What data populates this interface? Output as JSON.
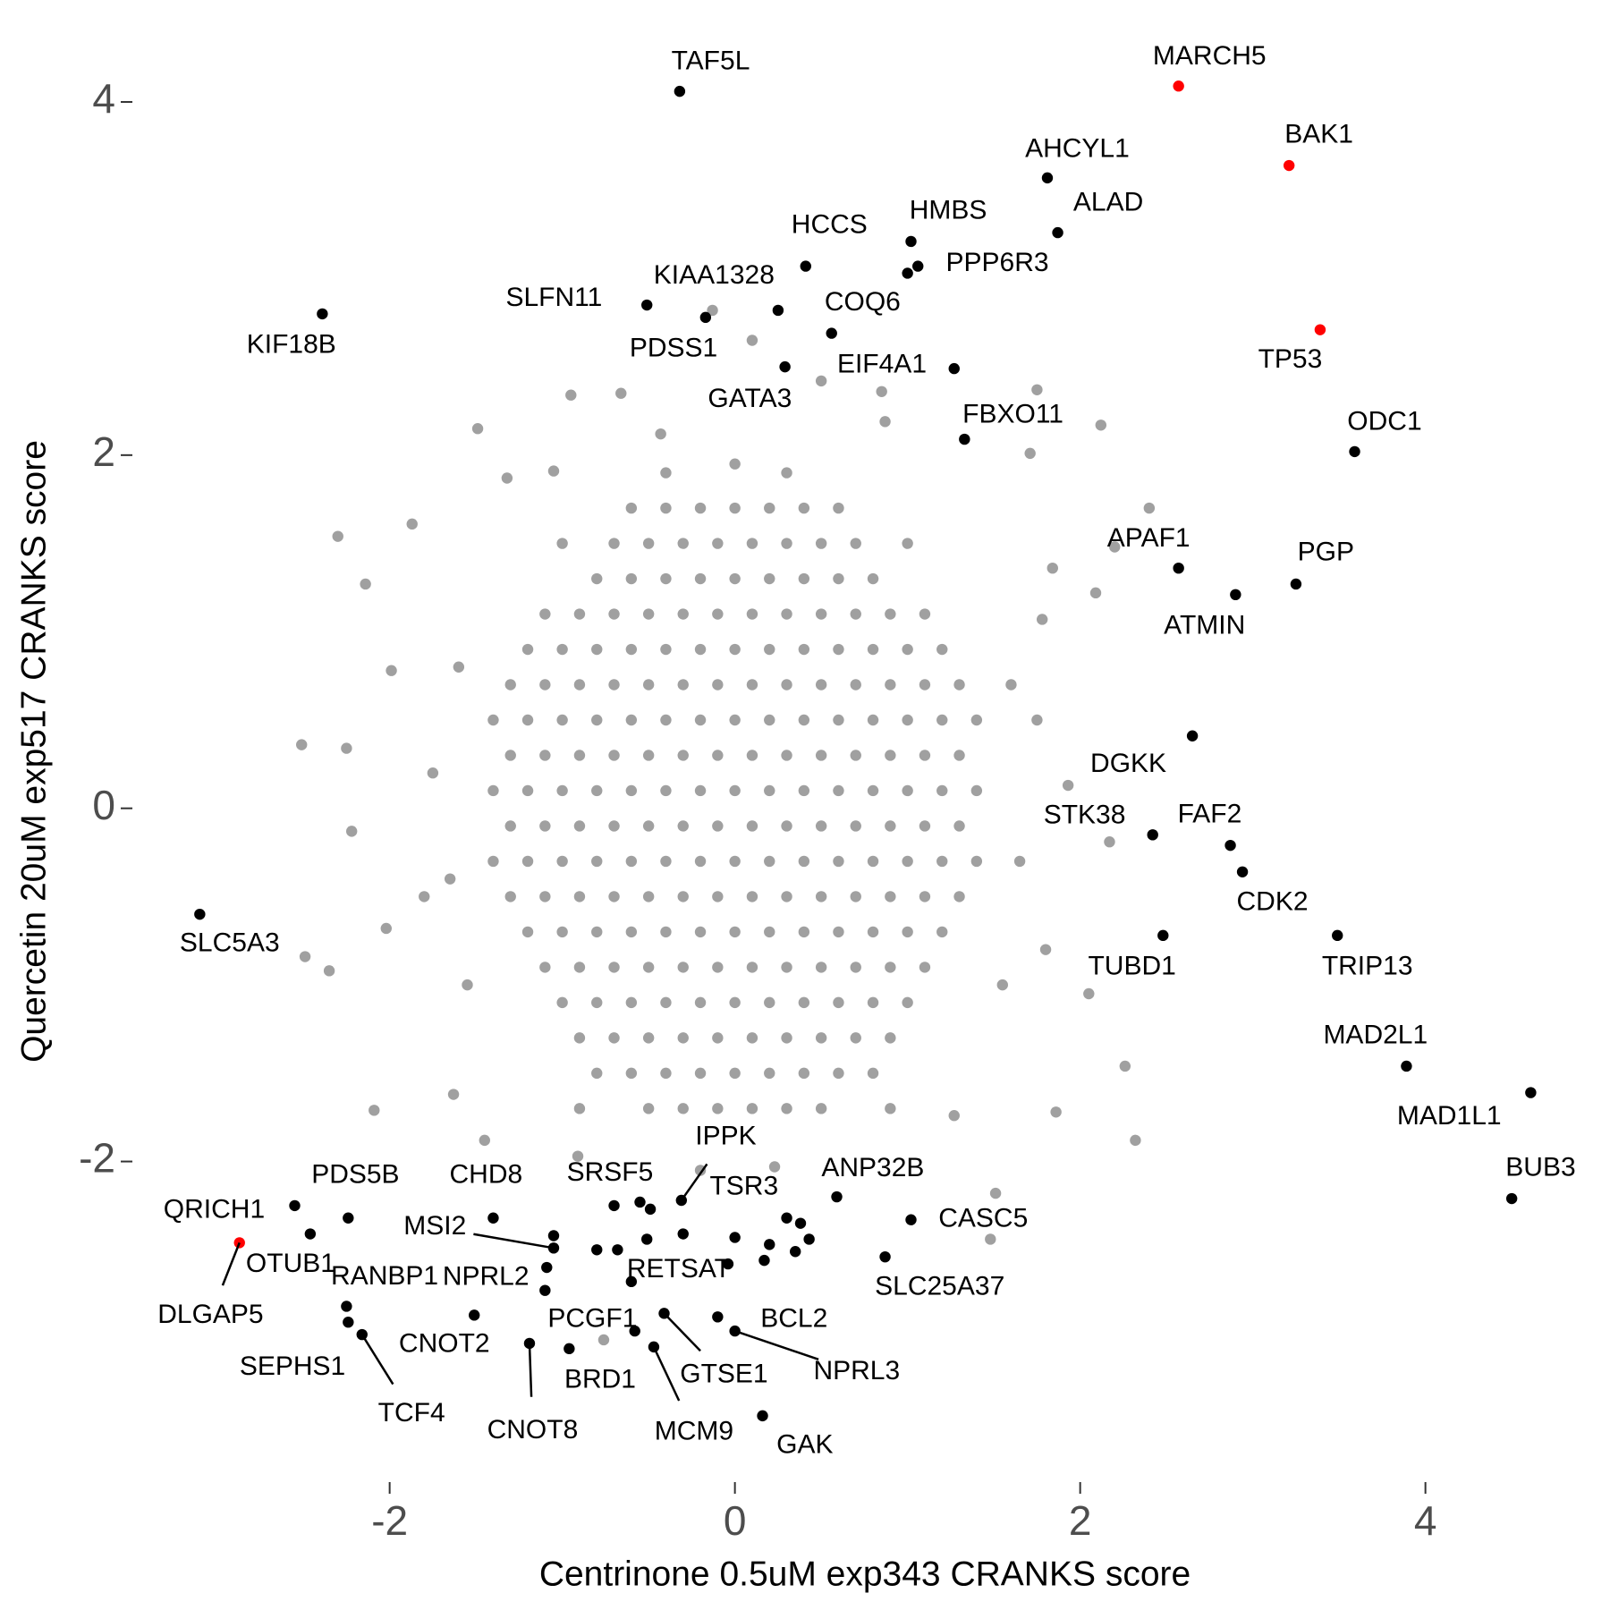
{
  "chart_data": {
    "type": "scatter",
    "x_label": "Centrinone 0.5uM exp343 CRANKS score",
    "y_label": "Quercetin 20uM exp517 CRANKS score",
    "xlim": [
      -3.48,
      4.95
    ],
    "ylim": [
      -3.78,
      4.4
    ],
    "xticks": [
      -2,
      0,
      2,
      4
    ],
    "yticks": [
      -2,
      0,
      2,
      4
    ],
    "grid": false,
    "series": [
      {
        "color": "#a0a0a0",
        "x": [
          -0.6,
          -0.4,
          -0.2,
          0,
          0.2,
          0.4,
          0.6,
          -0.7,
          -0.5,
          -0.3,
          -0.1,
          0.1,
          0.3,
          0.5,
          0.7,
          -0.8,
          -0.6,
          -0.4,
          -0.2,
          0,
          0.2,
          0.4,
          0.6,
          0.8,
          -1.1,
          -0.9,
          -0.7,
          -0.5,
          -0.3,
          -0.1,
          0.1,
          0.3,
          0.5,
          0.7,
          0.9,
          1.1,
          -1.2,
          -1,
          -0.8,
          -0.6,
          -0.4,
          -0.2,
          0,
          0.2,
          0.4,
          0.6,
          0.8,
          1,
          1.2,
          -1.3,
          -1.1,
          -0.9,
          -0.7,
          -0.5,
          -0.3,
          -0.1,
          0.1,
          0.3,
          0.5,
          0.7,
          0.9,
          1.1,
          1.3,
          -1.4,
          -1.2,
          -1,
          -0.8,
          -0.6,
          -0.4,
          -0.2,
          0,
          0.2,
          0.4,
          0.6,
          0.8,
          1,
          1.2,
          1.4,
          -1.3,
          -1.1,
          -0.9,
          -0.7,
          -0.5,
          -0.3,
          -0.1,
          0.1,
          0.3,
          0.5,
          0.7,
          0.9,
          1.1,
          1.3,
          -1.4,
          -1.2,
          -1,
          -0.8,
          -0.6,
          -0.4,
          -0.2,
          0,
          0.2,
          0.4,
          0.6,
          0.8,
          1,
          1.2,
          1.4,
          -1.3,
          -1.1,
          -0.9,
          -0.7,
          -0.5,
          -0.3,
          -0.1,
          0.1,
          0.3,
          0.5,
          0.7,
          0.9,
          1.1,
          1.3,
          -1.4,
          -1.2,
          -1,
          -0.8,
          -0.6,
          -0.4,
          -0.2,
          0,
          0.2,
          0.4,
          0.6,
          0.8,
          1,
          1.2,
          1.4,
          -1.3,
          -1.1,
          -0.9,
          -0.7,
          -0.5,
          -0.3,
          -0.1,
          0.1,
          0.3,
          0.5,
          0.7,
          0.9,
          1.1,
          1.3,
          -1.2,
          -1,
          -0.8,
          -0.6,
          -0.4,
          -0.2,
          0,
          0.2,
          0.4,
          0.6,
          0.8,
          1,
          1.2,
          -1.1,
          -0.9,
          -0.7,
          -0.5,
          -0.3,
          -0.1,
          0.1,
          0.3,
          0.5,
          0.7,
          0.9,
          1.1,
          -1,
          -0.8,
          -0.6,
          -0.4,
          -0.2,
          0,
          0.2,
          0.4,
          0.6,
          0.8,
          1,
          -0.9,
          -0.7,
          -0.5,
          -0.3,
          -0.1,
          0.1,
          0.3,
          0.5,
          0.7,
          0.9,
          -0.8,
          -0.6,
          -0.4,
          -0.2,
          0,
          0.2,
          0.4,
          0.6,
          0.8,
          -0.5,
          -0.3,
          -0.1,
          0.1,
          0.3,
          0.5,
          -2.51,
          -2.3,
          -1.87,
          -2.14,
          -2.49,
          -2.09,
          2.32,
          2.26,
          1.86,
          2.05,
          2.4,
          2.12,
          1.75,
          1.71,
          -0.66,
          -0.95,
          -1.49,
          -1.32,
          -1.05,
          -0.13,
          0.1,
          0.5,
          0.85,
          0.87,
          1.84,
          2.2,
          2.09,
          2.17,
          1.93,
          -2.22,
          -2.25,
          -1.99,
          -2.02,
          -2.35,
          -1.63,
          -1.45,
          -0.76,
          1.51,
          1.27,
          -0.91,
          0.23,
          -0.43,
          1.78,
          1.48,
          -1.6,
          -1.65,
          -1.55,
          1.6,
          1.65,
          1.55,
          -0.9,
          0.9,
          -1.0,
          1.0,
          0.0,
          -0.2,
          0.3,
          -0.4,
          1.8,
          -1.8,
          1.75,
          -1.75
        ],
        "y": [
          1.7,
          1.7,
          1.7,
          1.7,
          1.7,
          1.7,
          1.7,
          1.5,
          1.5,
          1.5,
          1.5,
          1.5,
          1.5,
          1.5,
          1.5,
          1.3,
          1.3,
          1.3,
          1.3,
          1.3,
          1.3,
          1.3,
          1.3,
          1.3,
          1.1,
          1.1,
          1.1,
          1.1,
          1.1,
          1.1,
          1.1,
          1.1,
          1.1,
          1.1,
          1.1,
          1.1,
          0.9,
          0.9,
          0.9,
          0.9,
          0.9,
          0.9,
          0.9,
          0.9,
          0.9,
          0.9,
          0.9,
          0.9,
          0.9,
          0.7,
          0.7,
          0.7,
          0.7,
          0.7,
          0.7,
          0.7,
          0.7,
          0.7,
          0.7,
          0.7,
          0.7,
          0.7,
          0.7,
          0.5,
          0.5,
          0.5,
          0.5,
          0.5,
          0.5,
          0.5,
          0.5,
          0.5,
          0.5,
          0.5,
          0.5,
          0.5,
          0.5,
          0.5,
          0.3,
          0.3,
          0.3,
          0.3,
          0.3,
          0.3,
          0.3,
          0.3,
          0.3,
          0.3,
          0.3,
          0.3,
          0.3,
          0.3,
          0.1,
          0.1,
          0.1,
          0.1,
          0.1,
          0.1,
          0.1,
          0.1,
          0.1,
          0.1,
          0.1,
          0.1,
          0.1,
          0.1,
          0.1,
          -0.1,
          -0.1,
          -0.1,
          -0.1,
          -0.1,
          -0.1,
          -0.1,
          -0.1,
          -0.1,
          -0.1,
          -0.1,
          -0.1,
          -0.1,
          -0.1,
          -0.3,
          -0.3,
          -0.3,
          -0.3,
          -0.3,
          -0.3,
          -0.3,
          -0.3,
          -0.3,
          -0.3,
          -0.3,
          -0.3,
          -0.3,
          -0.3,
          -0.3,
          -0.5,
          -0.5,
          -0.5,
          -0.5,
          -0.5,
          -0.5,
          -0.5,
          -0.5,
          -0.5,
          -0.5,
          -0.5,
          -0.5,
          -0.5,
          -0.5,
          -0.7,
          -0.7,
          -0.7,
          -0.7,
          -0.7,
          -0.7,
          -0.7,
          -0.7,
          -0.7,
          -0.7,
          -0.7,
          -0.7,
          -0.7,
          -0.9,
          -0.9,
          -0.9,
          -0.9,
          -0.9,
          -0.9,
          -0.9,
          -0.9,
          -0.9,
          -0.9,
          -0.9,
          -0.9,
          -1.1,
          -1.1,
          -1.1,
          -1.1,
          -1.1,
          -1.1,
          -1.1,
          -1.1,
          -1.1,
          -1.1,
          -1.1,
          -1.3,
          -1.3,
          -1.3,
          -1.3,
          -1.3,
          -1.3,
          -1.3,
          -1.3,
          -1.3,
          -1.3,
          -1.5,
          -1.5,
          -1.5,
          -1.5,
          -1.5,
          -1.5,
          -1.5,
          -1.5,
          -1.5,
          -1.7,
          -1.7,
          -1.7,
          -1.7,
          -1.7,
          -1.7,
          0.36,
          1.54,
          1.61,
          1.27,
          -0.84,
          -1.71,
          -1.88,
          -1.46,
          -1.72,
          -1.05,
          1.7,
          2.17,
          2.37,
          2.01,
          2.35,
          2.34,
          2.15,
          1.87,
          1.91,
          2.82,
          2.65,
          2.42,
          2.36,
          2.19,
          1.36,
          1.48,
          1.22,
          -0.19,
          0.13,
          -0.13,
          0.34,
          0.78,
          -0.68,
          -0.92,
          -1.62,
          -1.88,
          -3.01,
          -2.18,
          -1.74,
          -1.97,
          -2.03,
          2.12,
          1.07,
          -2.44,
          0.8,
          -0.4,
          -1.0,
          0.7,
          -0.3,
          -1.0,
          -1.7,
          -1.7,
          1.5,
          1.5,
          1.95,
          -2.05,
          1.9,
          1.9,
          -0.8,
          -0.5,
          0.5,
          0.2
        ]
      },
      {
        "color": "#000000",
        "x": [
          1.0,
          -1.05,
          -0.8,
          -0.68,
          -0.51,
          -0.49,
          -0.55,
          0.0,
          -0.04,
          0.17,
          0.2,
          0.3,
          0.38,
          0.43,
          0.35,
          -1.1
        ],
        "y": [
          3.03,
          -2.42,
          -2.5,
          -2.5,
          -2.44,
          -2.27,
          -2.23,
          -2.43,
          -2.58,
          -2.56,
          -2.47,
          -2.32,
          -2.35,
          -2.44,
          -2.51,
          -2.73
        ]
      },
      {
        "color": "#000000",
        "labels": [
          "TAF5L",
          "AHCYL1",
          "ALAD",
          "HMBS",
          "PPP6R3",
          "HCCS",
          "KIAA1328",
          "SLFN11",
          "PDSS1",
          "KIF18B",
          "COQ6",
          "GATA3",
          "EIF4A1",
          "FBXO11",
          "ODC1",
          "APAF1",
          "PGP",
          "ATMIN",
          "DGKK",
          "STK38",
          "FAF2",
          "CDK2",
          "TUBD1",
          "TRIP13",
          "SLC5A3",
          "MAD2L1",
          "MAD1L1",
          "BUB3",
          "QRICH1",
          "PDS5B",
          "OTUB1",
          "CHD8",
          "MSI2",
          "RANBP1",
          "SEPHS1",
          "TCF4",
          "NPRL2",
          "CNOT2",
          "CNOT8",
          "BRD1",
          "PCGF1",
          "SRSF5",
          "IPPK",
          "TSR3",
          "RETSAT",
          "GTSE1",
          "MCM9",
          "ANP32B",
          "CASC5",
          "SLC25A37",
          "BCL2",
          "NPRL3",
          "GAK"
        ],
        "x": [
          -0.32,
          1.81,
          1.87,
          1.02,
          1.06,
          0.41,
          0.25,
          -0.51,
          -0.17,
          -2.39,
          0.56,
          0.29,
          1.27,
          1.33,
          3.59,
          2.57,
          3.25,
          2.9,
          2.65,
          2.42,
          2.87,
          2.94,
          2.48,
          3.49,
          -3.1,
          3.89,
          4.61,
          4.5,
          -2.55,
          -2.24,
          -2.46,
          -1.4,
          -1.05,
          -2.25,
          -2.24,
          -2.16,
          -1.09,
          -1.51,
          -1.19,
          -0.96,
          -0.58,
          -0.7,
          -0.31,
          -0.3,
          -0.6,
          -0.41,
          -0.47,
          0.59,
          1.02,
          0.87,
          -0.1,
          0.0,
          0.16
        ],
        "y": [
          4.06,
          3.57,
          3.26,
          3.21,
          3.07,
          3.07,
          2.82,
          2.85,
          2.78,
          2.8,
          2.69,
          2.5,
          2.49,
          2.09,
          2.02,
          1.36,
          1.27,
          1.21,
          0.41,
          -0.15,
          -0.21,
          -0.36,
          -0.72,
          -0.72,
          -0.6,
          -1.46,
          -1.61,
          -2.21,
          -2.25,
          -2.32,
          -2.41,
          -2.32,
          -2.49,
          -2.82,
          -2.91,
          -2.98,
          -2.6,
          -2.87,
          -3.03,
          -3.06,
          -2.96,
          -2.25,
          -2.22,
          -2.41,
          -2.68,
          -2.86,
          -3.05,
          -2.2,
          -2.33,
          -2.54,
          -2.88,
          -2.96,
          -3.44
        ]
      },
      {
        "color": "#ff0000",
        "labels": [
          "MARCH5",
          "BAK1",
          "TP53",
          "DLGAP5"
        ],
        "x": [
          2.57,
          3.21,
          3.39,
          -2.87
        ],
        "y": [
          4.09,
          3.64,
          2.71,
          -2.46
        ]
      }
    ]
  }
}
